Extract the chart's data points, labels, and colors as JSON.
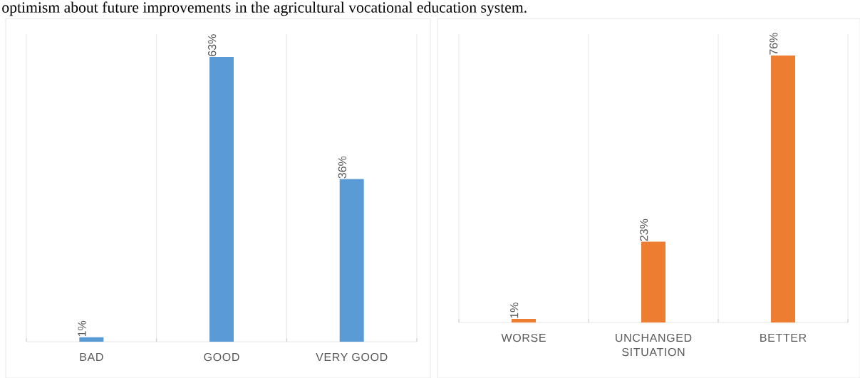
{
  "chart_data": [
    {
      "type": "bar",
      "categories": [
        "BAD",
        "GOOD",
        "VERY GOOD"
      ],
      "values": [
        1,
        63,
        36
      ],
      "value_labels": [
        "1%",
        "63%",
        "36%"
      ],
      "color": "#5b9bd5",
      "grid": "x",
      "annotations": [
        "optimism about future improvements in the agricultural vocational education system."
      ]
    },
    {
      "type": "bar",
      "categories": [
        "WORSE",
        "UNCHANGED SITUATION",
        "BETTER"
      ],
      "values": [
        1,
        23,
        76
      ],
      "value_labels": [
        "1%",
        "23%",
        "76%"
      ],
      "color": "#ed7d31",
      "grid": "x"
    }
  ]
}
